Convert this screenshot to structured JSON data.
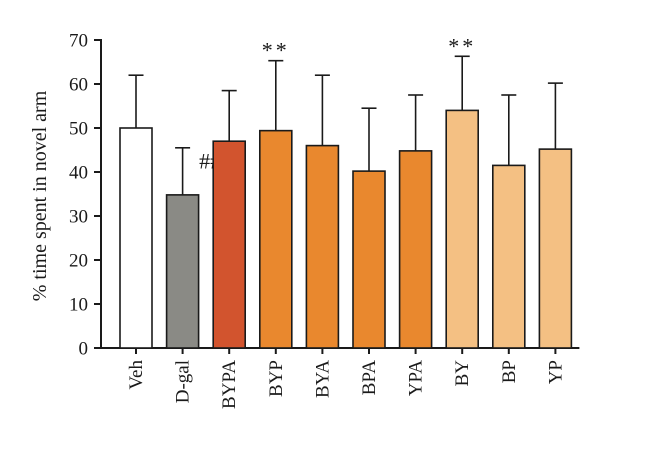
{
  "chart_data": {
    "type": "bar",
    "title": "",
    "xlabel": "",
    "ylabel": "% time spent in novel arm",
    "ylim": [
      0,
      70
    ],
    "yticks": [
      0,
      10,
      20,
      30,
      40,
      50,
      60,
      70
    ],
    "grid": false,
    "categories": [
      "Veh",
      "D-gal",
      "BYPA",
      "BYP",
      "BYA",
      "BPA",
      "YPA",
      "BY",
      "BP",
      "YP"
    ],
    "values": [
      50,
      34.8,
      47,
      49.4,
      46,
      40.2,
      44.8,
      54,
      41.5,
      45.2
    ],
    "error_upper": [
      62,
      45.5,
      58.5,
      65.3,
      62,
      54.5,
      57.5,
      66.3,
      57.5,
      60.2
    ],
    "colors": [
      "#ffffff",
      "#8a8a85",
      "#d2542e",
      "#e9882e",
      "#e9882e",
      "#e9882e",
      "#e9882e",
      "#f4c083",
      "#f4c083",
      "#f4c083"
    ],
    "annotations": [
      "",
      "###",
      "",
      "**",
      "",
      "",
      "",
      "**",
      "",
      ""
    ]
  }
}
